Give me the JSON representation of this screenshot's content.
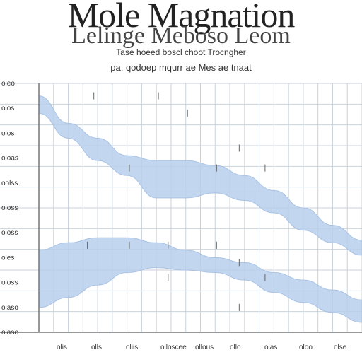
{
  "page": {
    "title": "Mole Magnation",
    "subtitle": "Lelinge Meboso Leom",
    "caption_1": "Tase hoeed boscl choot Trocngher",
    "caption_2": "pa. qodoep mqurr ae Mes ae tnaat"
  },
  "chart_data": {
    "type": "area",
    "title": "Mole Magnation",
    "subtitle": "Lelinge Meboso Leom",
    "x": [
      0,
      1,
      2,
      3,
      4,
      5,
      6,
      7,
      8,
      9,
      10,
      11
    ],
    "xticks": [
      "olis",
      "olls",
      "oliis",
      "olloscee",
      "ollous",
      "ollo",
      "olas",
      "oloo",
      "olse"
    ],
    "yticks": [
      "oleo",
      "olos",
      "olos",
      "oloas",
      "oolss",
      "oloss",
      "oloss",
      "oles",
      "oloss",
      "olaso",
      "olase"
    ],
    "ylim": [
      0,
      10
    ],
    "grid": true,
    "legend": "none",
    "series": [
      {
        "upper": [
          9.5,
          8.4,
          7.8,
          7.1,
          6.9,
          6.9,
          6.7,
          6.3,
          5.7,
          5.0,
          4.3,
          3.7
        ],
        "lower": [
          8.8,
          7.8,
          6.9,
          6.3,
          5.4,
          5.4,
          5.6,
          5.3,
          4.8,
          4.1,
          3.6,
          3.1
        ],
        "color": "#b9cfec"
      },
      {
        "upper": [
          3.3,
          3.6,
          3.8,
          3.8,
          3.6,
          3.3,
          3.0,
          2.8,
          2.4,
          2.1,
          1.7,
          1.3
        ],
        "lower": [
          1.0,
          1.4,
          1.9,
          2.4,
          2.6,
          2.5,
          2.4,
          2.1,
          1.6,
          1.2,
          0.8,
          0.4
        ],
        "color": "#b9cfec"
      }
    ]
  },
  "colors": {
    "band": "#b9cfec",
    "grid": "#c9d2dc",
    "band_edge": "#a9c2e4"
  }
}
